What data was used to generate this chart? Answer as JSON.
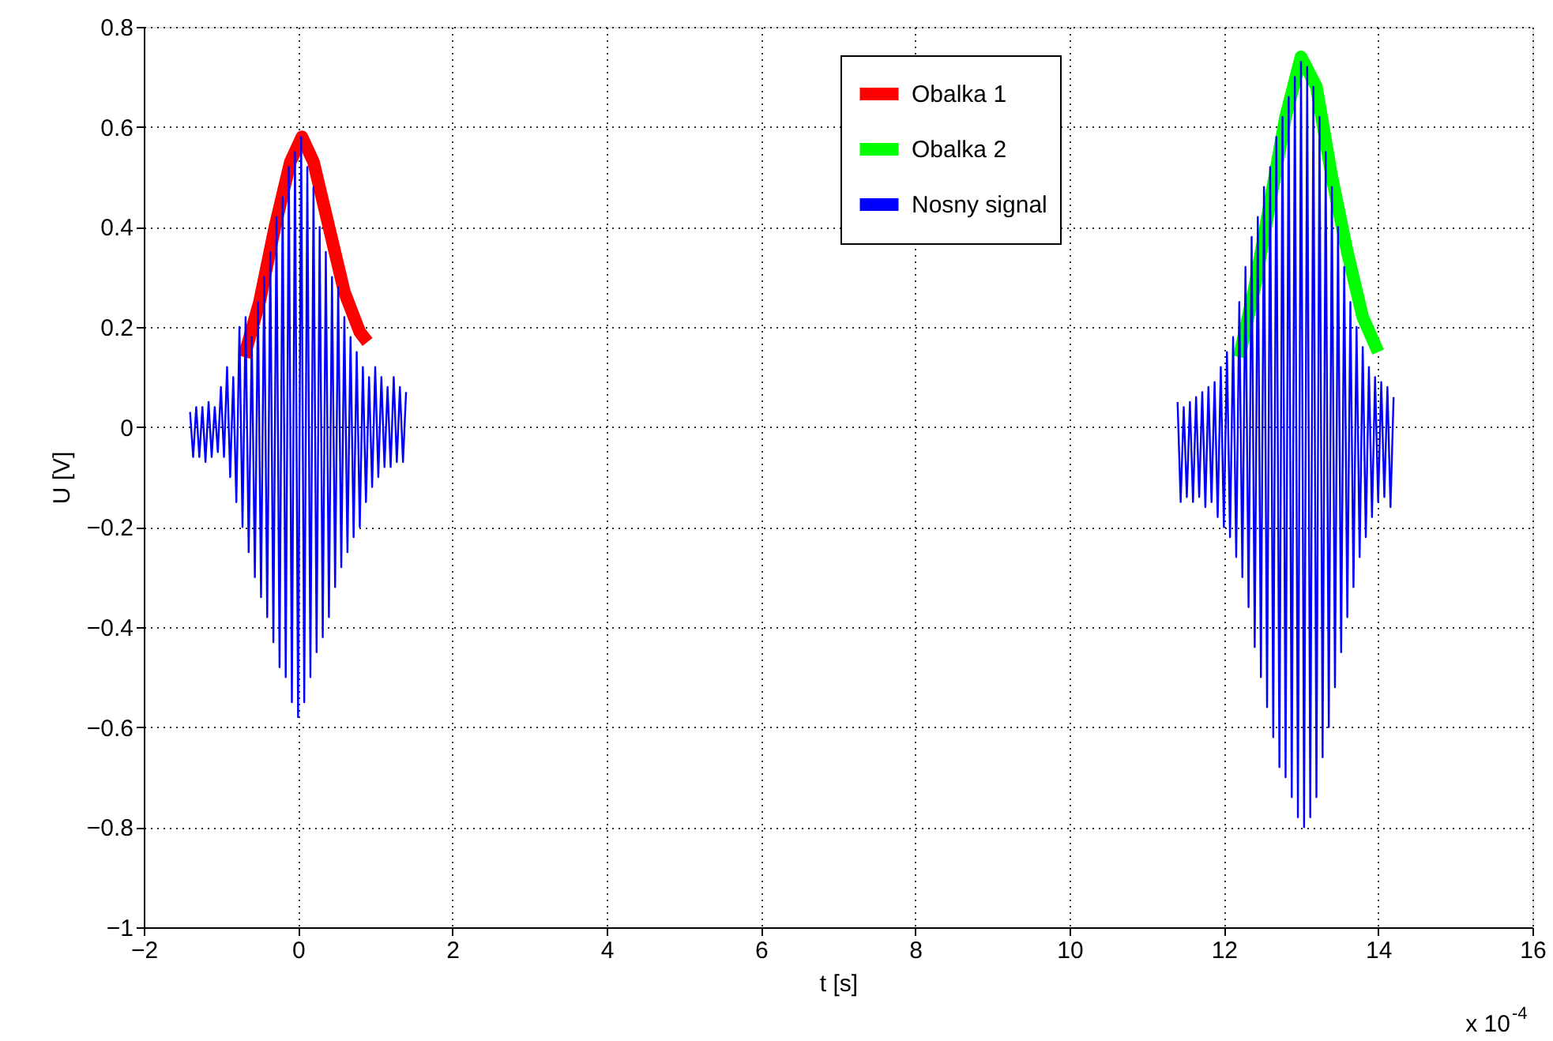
{
  "chart_data": {
    "type": "line",
    "xlabel": "t [s]",
    "ylabel": "U [V]",
    "xlim": [
      -2,
      16
    ],
    "xticks": [
      -2,
      0,
      2,
      4,
      6,
      8,
      10,
      12,
      14,
      16
    ],
    "ylim": [
      -1,
      0.8
    ],
    "yticks": [
      -1,
      -0.8,
      -0.6,
      -0.4,
      -0.2,
      0,
      0.2,
      0.4,
      0.6,
      0.8
    ],
    "grid": true,
    "legend": "top right",
    "line_style": "solid",
    "marker": "none",
    "annotations": [
      "x 10$^{-4}$"
    ],
    "series": [
      {
        "name": "Obalka 1",
        "color": "#ff0000",
        "x": [
          -0.7,
          -0.5,
          -0.3,
          -0.1,
          0.05,
          0.2,
          0.4,
          0.6,
          0.8,
          0.9
        ],
        "values": [
          0.14,
          0.25,
          0.4,
          0.53,
          0.58,
          0.53,
          0.4,
          0.27,
          0.19,
          0.17
        ]
      },
      {
        "name": "Obalka 2",
        "color": "#00ff00",
        "x": [
          12.2,
          12.4,
          12.6,
          12.8,
          13.0,
          13.2,
          13.4,
          13.6,
          13.8,
          14.0
        ],
        "values": [
          0.14,
          0.28,
          0.45,
          0.62,
          0.74,
          0.68,
          0.5,
          0.35,
          0.22,
          0.15
        ]
      },
      {
        "name": "Nosny signal",
        "color": "#0000ff",
        "x": [
          -1.4,
          -1.36,
          -1.32,
          -1.28,
          -1.24,
          -1.2,
          -1.16,
          -1.12,
          -1.08,
          -1.04,
          -1.0,
          -0.96,
          -0.92,
          -0.88,
          -0.84,
          -0.8,
          -0.76,
          -0.72,
          -0.68,
          -0.64,
          -0.6,
          -0.56,
          -0.52,
          -0.48,
          -0.44,
          -0.4,
          -0.36,
          -0.32,
          -0.28,
          -0.24,
          -0.2,
          -0.16,
          -0.12,
          -0.08,
          -0.04,
          0.0,
          0.04,
          0.08,
          0.12,
          0.16,
          0.2,
          0.24,
          0.28,
          0.32,
          0.36,
          0.4,
          0.44,
          0.48,
          0.52,
          0.56,
          0.6,
          0.64,
          0.68,
          0.72,
          0.76,
          0.8,
          0.84,
          0.88,
          0.92,
          0.96,
          1.0,
          1.04,
          1.08,
          1.12,
          1.16,
          1.2,
          1.24,
          1.28,
          1.32,
          1.36,
          1.4,
          6.0,
          11.4,
          11.44,
          11.48,
          11.52,
          11.56,
          11.6,
          11.64,
          11.68,
          11.72,
          11.76,
          11.8,
          11.84,
          11.88,
          11.92,
          11.96,
          12.0,
          12.04,
          12.08,
          12.12,
          12.16,
          12.2,
          12.24,
          12.28,
          12.32,
          12.36,
          12.4,
          12.44,
          12.48,
          12.52,
          12.56,
          12.6,
          12.64,
          12.68,
          12.72,
          12.76,
          12.8,
          12.84,
          12.88,
          12.92,
          12.96,
          13.0,
          13.04,
          13.08,
          13.12,
          13.16,
          13.2,
          13.24,
          13.28,
          13.32,
          13.36,
          13.4,
          13.44,
          13.48,
          13.52,
          13.56,
          13.6,
          13.64,
          13.68,
          13.72,
          13.76,
          13.8,
          13.84,
          13.88,
          13.92,
          13.96,
          14.0,
          14.04,
          14.08,
          14.12,
          14.16,
          14.2
        ],
        "values": [
          0.03,
          -0.06,
          0.04,
          -0.06,
          0.04,
          -0.07,
          0.05,
          -0.06,
          0.04,
          -0.05,
          0.08,
          -0.06,
          0.12,
          -0.1,
          0.1,
          -0.15,
          0.2,
          -0.2,
          0.22,
          -0.25,
          0.18,
          -0.3,
          0.25,
          -0.34,
          0.3,
          -0.38,
          0.35,
          -0.43,
          0.42,
          -0.48,
          0.46,
          -0.5,
          0.52,
          -0.55,
          0.55,
          -0.58,
          0.58,
          -0.55,
          0.52,
          -0.5,
          0.48,
          -0.45,
          0.4,
          -0.42,
          0.35,
          -0.38,
          0.3,
          -0.32,
          0.28,
          -0.28,
          0.22,
          -0.25,
          0.18,
          -0.22,
          0.15,
          -0.2,
          0.12,
          -0.15,
          0.1,
          -0.12,
          0.12,
          -0.1,
          0.1,
          -0.08,
          0.08,
          -0.08,
          0.1,
          -0.07,
          0.08,
          -0.07,
          0.07,
          null,
          0.05,
          -0.15,
          0.04,
          -0.14,
          0.05,
          -0.15,
          0.06,
          -0.14,
          0.07,
          -0.16,
          0.08,
          -0.15,
          0.09,
          -0.18,
          0.12,
          -0.2,
          0.15,
          -0.22,
          0.18,
          -0.26,
          0.25,
          -0.3,
          0.32,
          -0.36,
          0.38,
          -0.44,
          0.42,
          -0.5,
          0.48,
          -0.56,
          0.52,
          -0.62,
          0.58,
          -0.68,
          0.62,
          -0.7,
          0.66,
          -0.74,
          0.7,
          -0.78,
          0.73,
          -0.8,
          0.72,
          -0.78,
          0.68,
          -0.74,
          0.62,
          -0.66,
          0.55,
          -0.6,
          0.48,
          -0.52,
          0.4,
          -0.45,
          0.32,
          -0.38,
          0.25,
          -0.32,
          0.2,
          -0.26,
          0.16,
          -0.22,
          0.12,
          -0.18,
          0.1,
          -0.15,
          0.09,
          -0.14,
          0.08,
          -0.16,
          0.06
        ]
      }
    ]
  }
}
